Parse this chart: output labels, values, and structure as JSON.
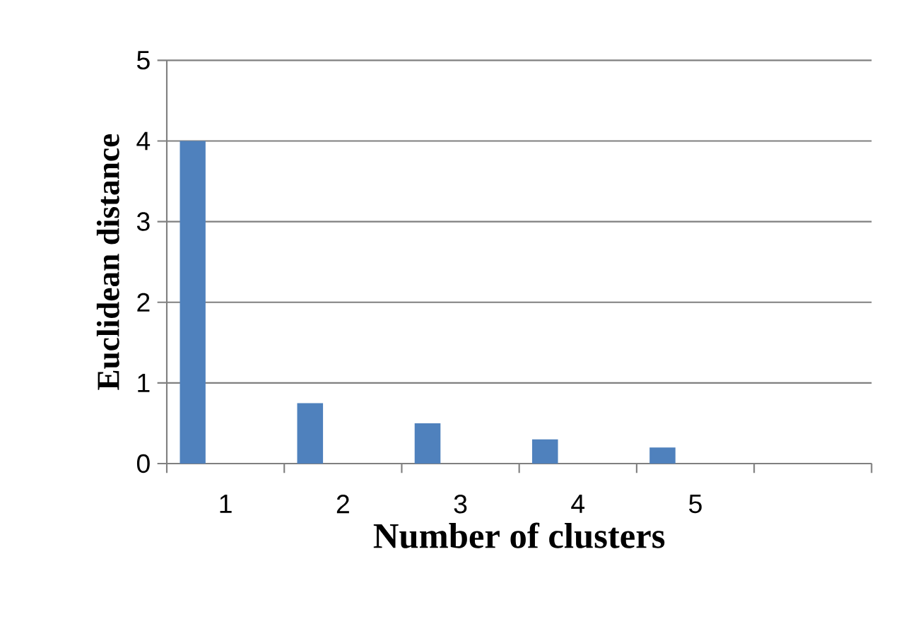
{
  "chart_data": {
    "type": "bar",
    "xlabel": "Number of clusters",
    "ylabel": "Euclidean distance",
    "categories": [
      "1",
      "2",
      "3",
      "4",
      "5",
      null
    ],
    "values": [
      4,
      0.75,
      0.5,
      0.3,
      0.2,
      null
    ],
    "color": "#4f81bd",
    "ylim": [
      0,
      5
    ],
    "yticks": [
      0,
      1,
      2,
      3,
      4,
      5
    ],
    "grid": "y"
  }
}
